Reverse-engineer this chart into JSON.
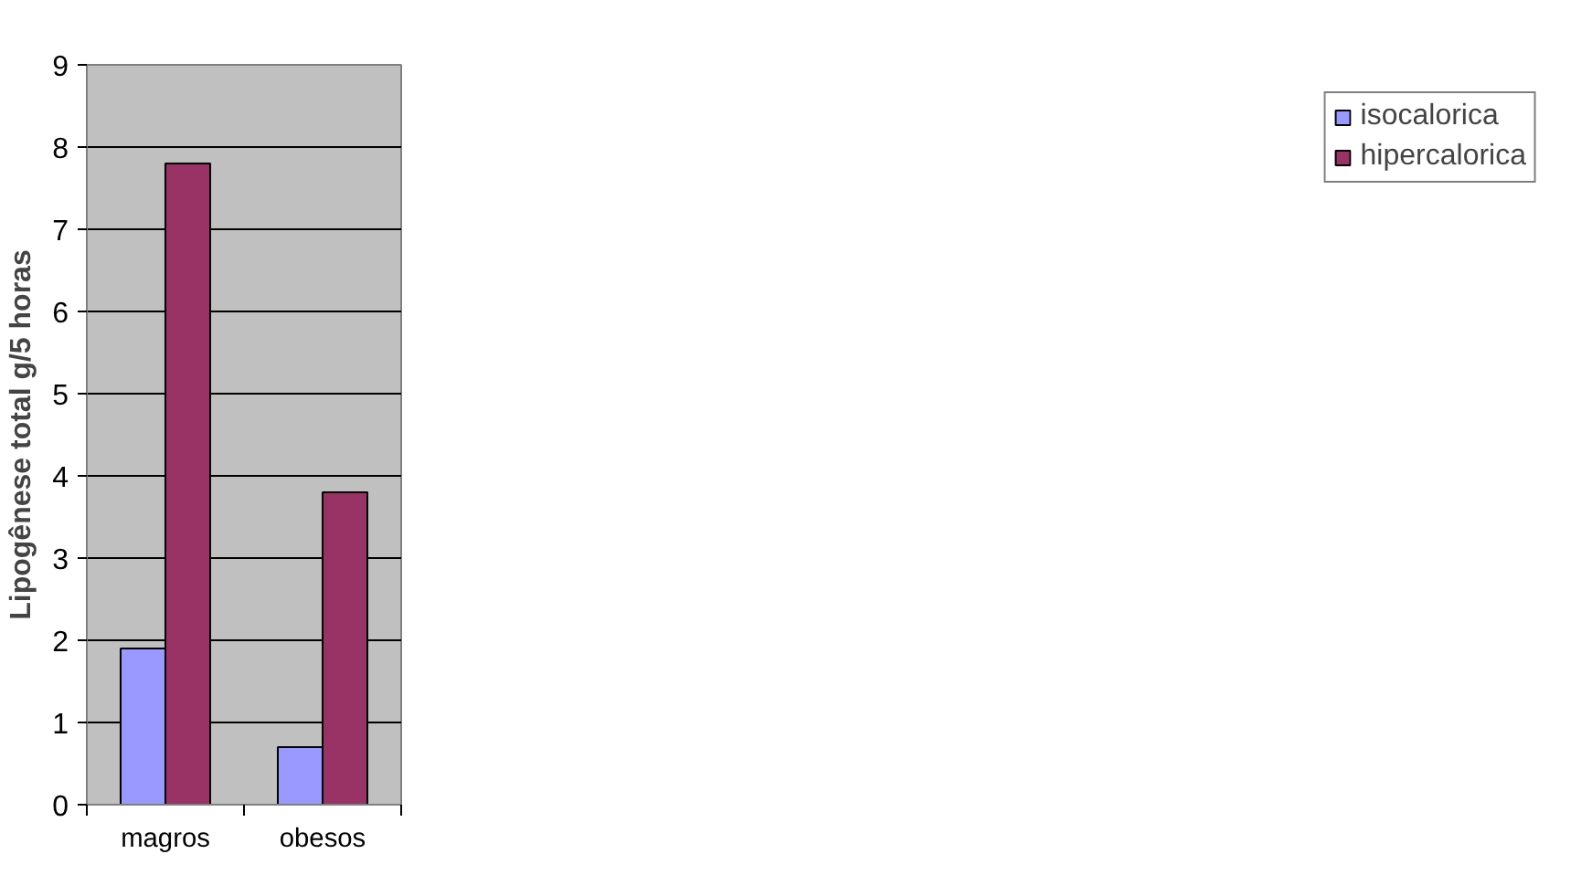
{
  "chart_data": {
    "type": "bar",
    "ylabel": "Lipogênese total g/5 horas",
    "categories": [
      "magros",
      "obesos"
    ],
    "series": [
      {
        "name": "isocalorica",
        "color": "#9999ff",
        "values": [
          1.9,
          0.7
        ]
      },
      {
        "name": "hipercalorica",
        "color": "#993366",
        "values": [
          7.8,
          3.8
        ]
      }
    ],
    "ylim": [
      0,
      9
    ],
    "yticks": [
      0,
      1,
      2,
      3,
      4,
      5,
      6,
      7,
      8,
      9
    ],
    "grid": "y",
    "legend": "right"
  }
}
